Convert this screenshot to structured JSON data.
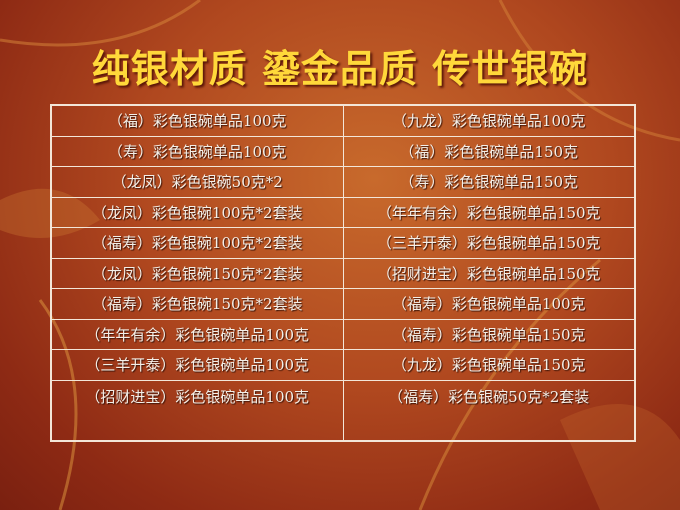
{
  "title": "纯银材质 鎏金品质 传世银碗",
  "table": {
    "rows": [
      [
        "（福）彩色银碗单品100克",
        "（九龙）彩色银碗单品100克"
      ],
      [
        "（寿）彩色银碗单品100克",
        "（福）彩色银碗单品150克"
      ],
      [
        "（龙凤）彩色银碗50克*2",
        "（寿）彩色银碗单品150克"
      ],
      [
        "（龙凤）彩色银碗100克*2套装",
        "（年年有余）彩色银碗单品150克"
      ],
      [
        "（福寿）彩色银碗100克*2套装",
        "（三羊开泰）彩色银碗单品150克"
      ],
      [
        "（龙凤）彩色银碗150克*2套装",
        "（招财进宝）彩色银碗单品150克"
      ],
      [
        "（福寿）彩色银碗150克*2套装",
        "（福寿）彩色银碗单品100克"
      ],
      [
        "（年年有余）彩色银碗单品100克",
        "（福寿）彩色银碗单品150克"
      ],
      [
        "（三羊开泰）彩色银碗单品100克",
        "（九龙）彩色银碗单品150克"
      ],
      [
        "（招财进宝）彩色银碗单品100克",
        "（福寿）彩色银碗50克*2套装"
      ]
    ]
  },
  "colors": {
    "title": "#ffd83a",
    "background": "#b0481f",
    "grid": "#f3e6d8"
  }
}
